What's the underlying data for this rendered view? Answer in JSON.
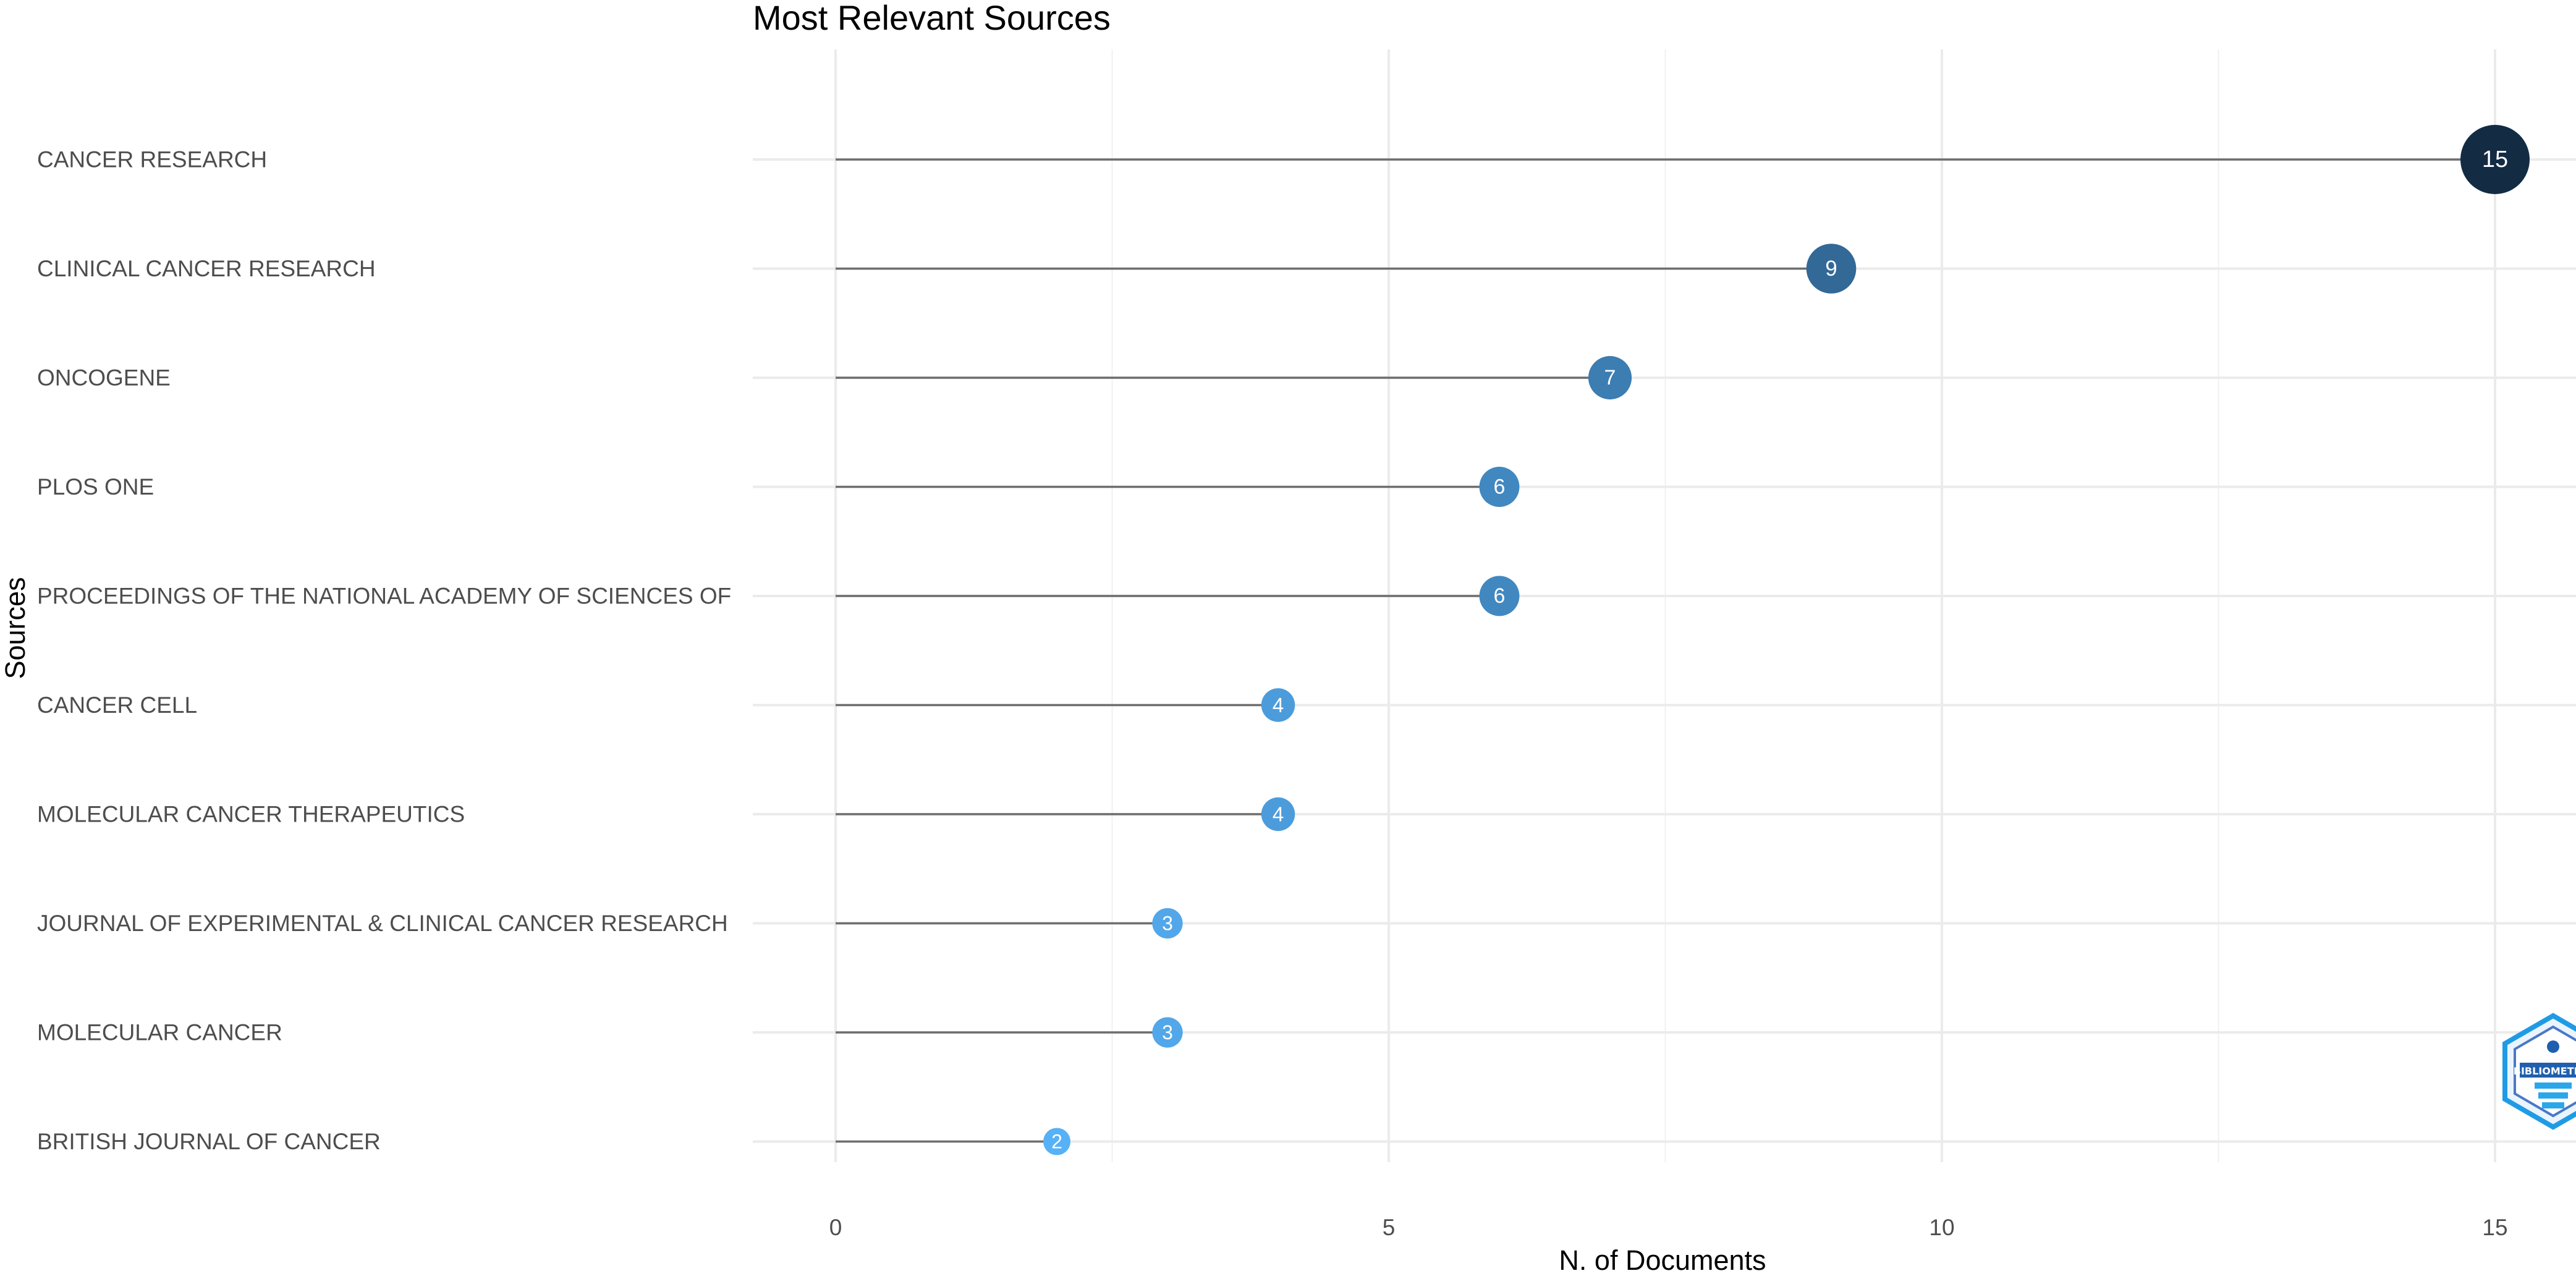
{
  "chart_data": {
    "type": "lollipop",
    "title": "Most Relevant Sources",
    "xlabel": "N. of Documents",
    "ylabel": "Sources",
    "xlim": [
      -0.75,
      15.75
    ],
    "xticks": [
      0,
      5,
      10,
      15
    ],
    "grid": true,
    "categories": [
      "CANCER RESEARCH",
      "CLINICAL CANCER RESEARCH",
      "ONCOGENE",
      "PLOS ONE",
      "PROCEEDINGS OF THE NATIONAL ACADEMY OF SCIENCES OF",
      "CANCER CELL",
      "MOLECULAR CANCER THERAPEUTICS",
      "JOURNAL OF EXPERIMENTAL & CLINICAL CANCER RESEARCH",
      "MOLECULAR CANCER",
      "BRITISH JOURNAL OF CANCER"
    ],
    "values": [
      15,
      9,
      7,
      6,
      6,
      4,
      4,
      3,
      3,
      2
    ],
    "color_scale": {
      "low": "#56b1f7",
      "high": "#132b43"
    }
  },
  "logo": {
    "text": "BIBLIOMETRIX"
  }
}
